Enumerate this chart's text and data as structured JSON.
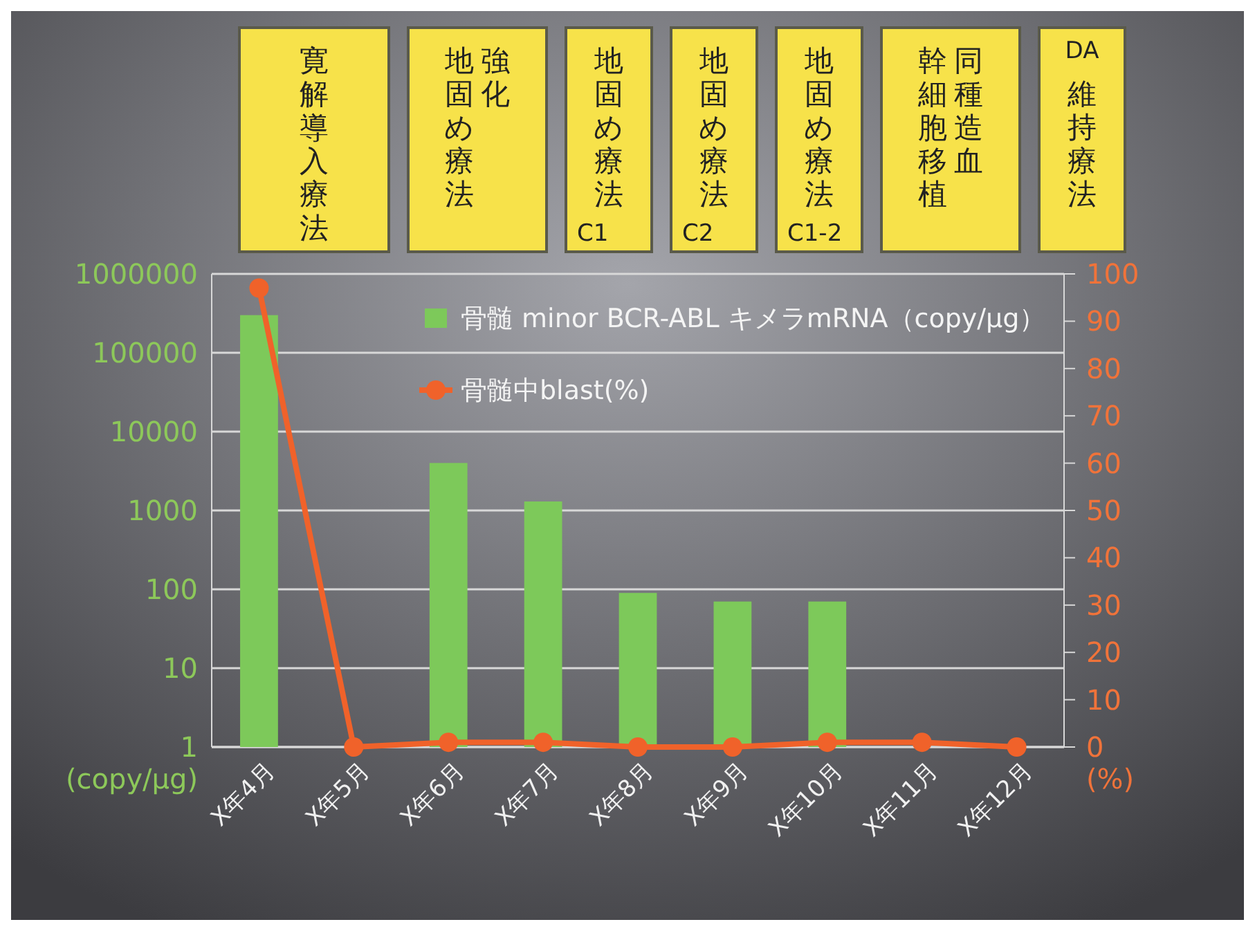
{
  "chart_data": {
    "type": "bar",
    "categories": [
      "X年4月",
      "X年5月",
      "X年6月",
      "X年7月",
      "X年8月",
      "X年9月",
      "X年10月",
      "X年11月",
      "X年12月"
    ],
    "series": [
      {
        "name": "骨髄 minor BCR-ABL キメラmRNA（copy/µg）",
        "color": "#7dc95a",
        "values": [
          300000,
          null,
          4000,
          1300,
          90,
          70,
          70,
          null,
          null
        ]
      },
      {
        "name": "骨髄中blast(%)",
        "type": "line",
        "axis": "y2",
        "color": "#f0622a",
        "marker": "circle",
        "values": [
          97,
          0,
          1,
          1,
          0,
          0,
          1,
          1,
          0
        ]
      }
    ],
    "ylabel": "(copy/µg)",
    "y2label": "(%)",
    "log": "y",
    "ylim": [
      1,
      1000000
    ],
    "yticks": [
      1,
      10,
      100,
      1000,
      10000,
      100000,
      1000000
    ],
    "y2lim": [
      0,
      100
    ],
    "y2ticks": [
      0,
      10,
      20,
      30,
      40,
      50,
      60,
      70,
      80,
      90,
      100
    ],
    "grid": "y",
    "legend": "top",
    "annotations": [
      "寛解導入療法",
      "強化",
      "地固め療法",
      "地固め療法\nC1",
      "地固め療法\nC2",
      "地固め療法\nC1-2",
      "同種造血",
      "幹細胞移植",
      "DA\n維持療法"
    ]
  }
}
